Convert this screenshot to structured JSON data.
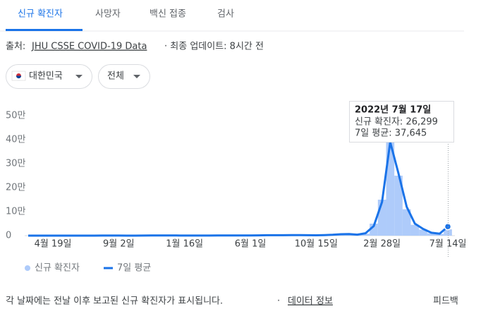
{
  "tabs": [
    "신규 확진자",
    "사망자",
    "백신 접종",
    "검사"
  ],
  "source": {
    "prefix": "출처:",
    "link": "JHU CSSE COVID-19 Data",
    "updated": "· 최종 업데이트: 8시간 전"
  },
  "filters": [
    "대한민국",
    "전체"
  ],
  "chart_data": {
    "type": "bar-line",
    "categories": [
      null,
      null,
      null,
      "4월 19일",
      null,
      null,
      null,
      null,
      null,
      null,
      null,
      "9월 2일",
      null,
      null,
      null,
      null,
      null,
      null,
      null,
      "1월 16일",
      null,
      null,
      null,
      null,
      null,
      null,
      null,
      "6월 1일",
      null,
      null,
      null,
      null,
      null,
      null,
      null,
      "10월 15일",
      null,
      null,
      null,
      null,
      null,
      null,
      null,
      "2월 28일",
      null,
      null,
      null,
      null,
      null,
      null,
      null,
      "7월 14일"
    ],
    "series": [
      {
        "name": "신규 확진자",
        "kind": "bar",
        "color": "#aecbfa",
        "values": [
          100,
          90,
          50,
          20,
          10,
          30,
          50,
          40,
          60,
          200,
          280,
          200,
          100,
          120,
          230,
          500,
          800,
          1000,
          600,
          400,
          400,
          350,
          400,
          450,
          600,
          550,
          500,
          600,
          1200,
          1700,
          1800,
          1600,
          2000,
          2300,
          1700,
          1500,
          2500,
          3500,
          6000,
          7000,
          4000,
          8000,
          50000,
          150000,
          400000,
          250000,
          110000,
          45000,
          25000,
          10000,
          7000,
          26299
        ]
      },
      {
        "name": "7일 평균",
        "kind": "line",
        "color": "#1a73e8",
        "values": [
          100,
          80,
          50,
          20,
          15,
          30,
          45,
          45,
          60,
          180,
          260,
          200,
          110,
          120,
          220,
          480,
          780,
          950,
          620,
          420,
          400,
          360,
          400,
          450,
          580,
          560,
          510,
          600,
          1150,
          1650,
          1750,
          1650,
          1950,
          2250,
          1750,
          1550,
          2400,
          3400,
          5800,
          6800,
          4200,
          10000,
          40000,
          140000,
          390000,
          260000,
          120000,
          50000,
          28000,
          12000,
          8000,
          37645
        ]
      }
    ],
    "ylim": [
      0,
      500000
    ],
    "yticks": [
      {
        "value": 0,
        "label": "0"
      },
      {
        "value": 100000,
        "label": "10만"
      },
      {
        "value": 200000,
        "label": "20만"
      },
      {
        "value": 300000,
        "label": "30만"
      },
      {
        "value": 400000,
        "label": "40만"
      },
      {
        "value": 500000,
        "label": "50만"
      }
    ],
    "grid": false,
    "tooltip": {
      "date": "2022년 7월 17일",
      "lines": [
        "신규 확진자: 26,299",
        "7일 평균: 37,645"
      ]
    }
  },
  "footer": {
    "note": "각 날짜에는 전날 이후 보고된 신규 확진자가 표시됩니다.",
    "separator": "·",
    "link": "데이터 정보",
    "feedback": "피드백"
  }
}
